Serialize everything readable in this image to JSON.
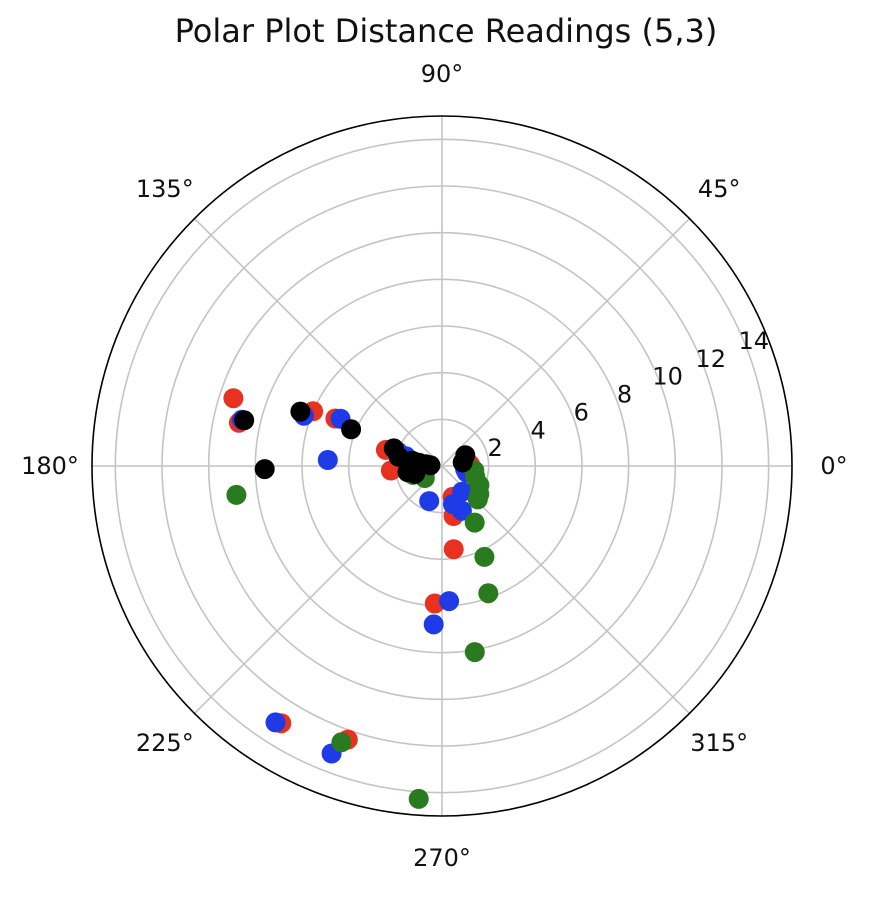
{
  "chart_data": {
    "type": "scatter",
    "projection": "polar",
    "title": "Polar Plot Distance Readings (5,3)",
    "theta_unit": "degrees",
    "theta_ticks": [
      {
        "value": 0,
        "label": "0°"
      },
      {
        "value": 45,
        "label": "45°"
      },
      {
        "value": 90,
        "label": "90°"
      },
      {
        "value": 135,
        "label": "135°"
      },
      {
        "value": 180,
        "label": "180°"
      },
      {
        "value": 225,
        "label": "225°"
      },
      {
        "value": 270,
        "label": "270°"
      },
      {
        "value": 315,
        "label": "315°"
      }
    ],
    "r_ticks": [
      {
        "value": 2,
        "label": "2"
      },
      {
        "value": 4,
        "label": "4"
      },
      {
        "value": 6,
        "label": "6"
      },
      {
        "value": 8,
        "label": "8"
      },
      {
        "value": 10,
        "label": "10"
      },
      {
        "value": 12,
        "label": "12"
      },
      {
        "value": 14,
        "label": "14"
      }
    ],
    "rlim": [
      0,
      15
    ],
    "r_label_angle": 22.5,
    "grid": true,
    "series": [
      {
        "color": "#e8311e",
        "points": [
          {
            "theta": 162,
            "r": 9.4
          },
          {
            "theta": 168,
            "r": 8.9
          },
          {
            "theta": 157,
            "r": 6.0
          },
          {
            "theta": 156,
            "r": 5.0
          },
          {
            "theta": 164,
            "r": 2.5
          },
          {
            "theta": 163,
            "r": 2.1
          },
          {
            "theta": 172,
            "r": 1.2
          },
          {
            "theta": 175,
            "r": 0.8
          },
          {
            "theta": 3,
            "r": 1.2
          },
          {
            "theta": 185,
            "r": 2.2
          },
          {
            "theta": 195,
            "r": 1.1
          },
          {
            "theta": 200,
            "r": 0.9
          },
          {
            "theta": 283,
            "r": 2.2
          },
          {
            "theta": 278,
            "r": 3.6
          },
          {
            "theta": 267,
            "r": 5.9
          },
          {
            "theta": 238,
            "r": 13.0
          },
          {
            "theta": 251,
            "r": 12.4
          },
          {
            "theta": 289,
            "r": 1.4
          }
        ]
      },
      {
        "color": "#1f3be8",
        "points": [
          {
            "theta": 167,
            "r": 8.8
          },
          {
            "theta": 160,
            "r": 6.3
          },
          {
            "theta": 155,
            "r": 4.8
          },
          {
            "theta": 177,
            "r": 4.9
          },
          {
            "theta": 162,
            "r": 2.0
          },
          {
            "theta": 165,
            "r": 1.6
          },
          {
            "theta": 176,
            "r": 0.8
          },
          {
            "theta": 352,
            "r": 1.0
          },
          {
            "theta": 345,
            "r": 1.1
          },
          {
            "theta": 308,
            "r": 1.4
          },
          {
            "theta": 294,
            "r": 2.1
          },
          {
            "theta": 199,
            "r": 0.9
          },
          {
            "theta": 250,
            "r": 1.6
          },
          {
            "theta": 273,
            "r": 5.8
          },
          {
            "theta": 267,
            "r": 6.8
          },
          {
            "theta": 237,
            "r": 13.1
          },
          {
            "theta": 249,
            "r": 13.2
          },
          {
            "theta": 286,
            "r": 1.7
          }
        ]
      },
      {
        "color": "#2a7a1f",
        "points": [
          {
            "theta": 188,
            "r": 8.9
          },
          {
            "theta": 197,
            "r": 1.3
          },
          {
            "theta": 203,
            "r": 0.8
          },
          {
            "theta": 215,
            "r": 0.9
          },
          {
            "theta": 342,
            "r": 1.5
          },
          {
            "theta": 333,
            "r": 1.8
          },
          {
            "theta": 323,
            "r": 2.0
          },
          {
            "theta": 300,
            "r": 2.8
          },
          {
            "theta": 295,
            "r": 4.3
          },
          {
            "theta": 290,
            "r": 5.8
          },
          {
            "theta": 280,
            "r": 8.1
          },
          {
            "theta": 250,
            "r": 12.6
          },
          {
            "theta": 266,
            "r": 14.3
          },
          {
            "theta": 317,
            "r": 2.1
          },
          {
            "theta": 352,
            "r": 1.4
          }
        ]
      },
      {
        "color": "#000000",
        "points": [
          {
            "theta": 167,
            "r": 8.7
          },
          {
            "theta": 159,
            "r": 6.5
          },
          {
            "theta": 158,
            "r": 4.2
          },
          {
            "theta": 181,
            "r": 7.6
          },
          {
            "theta": 168,
            "r": 1.9
          },
          {
            "theta": 170,
            "r": 1.3
          },
          {
            "theta": 172,
            "r": 1.0
          },
          {
            "theta": 174,
            "r": 0.7
          },
          {
            "theta": 10,
            "r": 0.9
          },
          {
            "theta": 25,
            "r": 1.1
          },
          {
            "theta": 190,
            "r": 1.5
          },
          {
            "theta": 196,
            "r": 1.2
          },
          {
            "theta": 176,
            "r": 0.5
          },
          {
            "theta": 160,
            "r": 2.2
          }
        ]
      }
    ]
  }
}
